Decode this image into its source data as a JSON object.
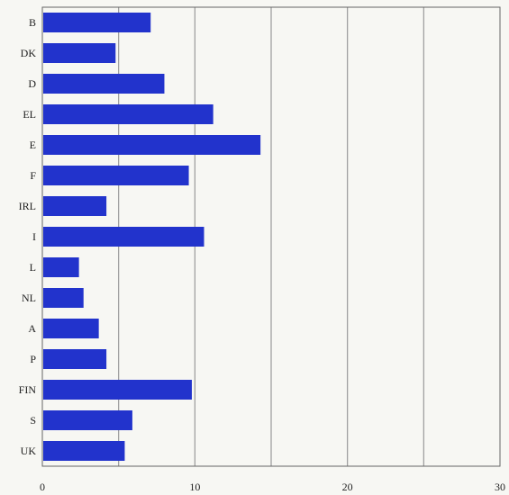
{
  "chart_data": {
    "type": "bar",
    "orientation": "horizontal",
    "categories": [
      "B",
      "DK",
      "D",
      "EL",
      "E",
      "F",
      "IRL",
      "I",
      "L",
      "NL",
      "A",
      "P",
      "FIN",
      "S",
      "UK"
    ],
    "values": [
      7.1,
      4.8,
      8.0,
      11.2,
      14.3,
      9.6,
      4.2,
      10.6,
      2.4,
      2.7,
      3.7,
      4.2,
      9.8,
      5.9,
      5.4
    ],
    "xlim": [
      0,
      30
    ],
    "xticks": [
      0,
      10,
      20,
      30
    ],
    "xtick_labels": [
      "0",
      "10",
      "20",
      "30"
    ],
    "grid": true,
    "bar_color": "#2233cc",
    "grid_color": "#9a9a9a",
    "title": "",
    "xlabel": "",
    "ylabel": ""
  }
}
